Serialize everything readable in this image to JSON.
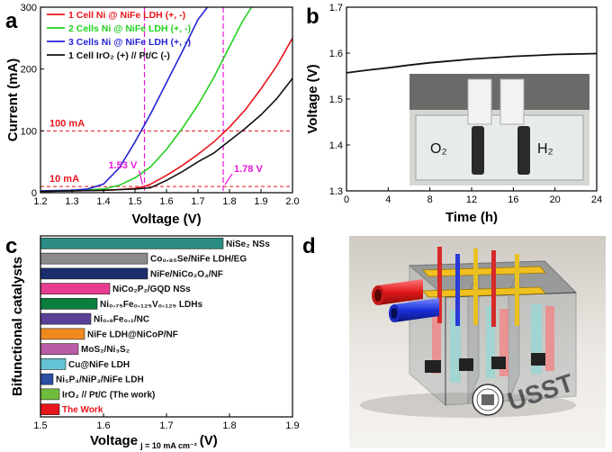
{
  "panels": {
    "a": {
      "letter": "a"
    },
    "b": {
      "letter": "b"
    },
    "c": {
      "letter": "c"
    },
    "d": {
      "letter": "d",
      "watermark": "USST",
      "tube_colors": [
        "#e02020",
        "#1a2fd8"
      ]
    }
  },
  "chart_data": [
    {
      "panel": "a",
      "type": "line",
      "xlabel": "Voltage (V)",
      "ylabel": "Current (mA)",
      "xlim": [
        1.2,
        2.0
      ],
      "ylim": [
        0,
        300
      ],
      "xticks": [
        "1.2",
        "1.3",
        "1.4",
        "1.5",
        "1.6",
        "1.7",
        "1.8",
        "1.9",
        "2.0"
      ],
      "yticks": [
        "0",
        "100",
        "200",
        "300"
      ],
      "grid": false,
      "legend_position": "top-left",
      "series": [
        {
          "name": "1 Cell   Ni @ NiFe LDH (+, -)",
          "color": "#e8141b",
          "x": [
            1.2,
            1.3,
            1.4,
            1.45,
            1.5,
            1.53,
            1.55,
            1.6,
            1.65,
            1.7,
            1.75,
            1.8,
            1.85,
            1.9,
            1.95,
            2.0
          ],
          "y": [
            2,
            3,
            4,
            5,
            7,
            10,
            14,
            28,
            44,
            62,
            82,
            106,
            134,
            168,
            205,
            250
          ]
        },
        {
          "name": "2 Cells Ni @ NiFe LDH (+, -)",
          "color": "#22d01f",
          "x": [
            1.2,
            1.3,
            1.4,
            1.45,
            1.5,
            1.55,
            1.6,
            1.65,
            1.7,
            1.75,
            1.8,
            1.84,
            1.87
          ],
          "y": [
            2,
            3,
            6,
            12,
            24,
            42,
            70,
            104,
            142,
            186,
            236,
            276,
            300
          ]
        },
        {
          "name": "3 Cells Ni @ NiFe LDH (+, -)",
          "color": "#2424d6",
          "x": [
            1.2,
            1.3,
            1.35,
            1.4,
            1.45,
            1.5,
            1.55,
            1.6,
            1.65,
            1.7,
            1.73
          ],
          "y": [
            3,
            4,
            6,
            14,
            40,
            82,
            128,
            178,
            228,
            280,
            300
          ]
        },
        {
          "name": "1 Cell   IrO₂ (+) // Pt/C (-)",
          "color": "#111111",
          "x": [
            1.2,
            1.3,
            1.4,
            1.45,
            1.5,
            1.55,
            1.6,
            1.65,
            1.7,
            1.75,
            1.78,
            1.85,
            1.9,
            1.95,
            2.0
          ],
          "y": [
            2,
            3,
            4,
            5,
            6,
            8,
            20,
            34,
            50,
            64,
            76,
            104,
            126,
            152,
            185
          ]
        }
      ],
      "reference_lines": [
        {
          "axis": "y",
          "value": 100,
          "label": "100 mA",
          "color": "#e8141b"
        },
        {
          "axis": "y",
          "value": 10,
          "label": "10 mA",
          "color": "#e8141b"
        },
        {
          "axis": "x",
          "value": 1.53,
          "color": "#e815d8"
        },
        {
          "axis": "x",
          "value": 1.78,
          "color": "#e815d8"
        }
      ],
      "annotations": [
        {
          "text": "1.53 V",
          "x": 1.53,
          "y": 10,
          "color": "#e815d8"
        },
        {
          "text": "1.78 V",
          "x": 1.78,
          "y": 10,
          "color": "#e815d8"
        }
      ]
    },
    {
      "panel": "b",
      "type": "line",
      "xlabel": "Time (h)",
      "ylabel": "Voltage (V)",
      "xlim": [
        0,
        24
      ],
      "ylim": [
        1.3,
        1.7
      ],
      "xticks": [
        "0",
        "4",
        "8",
        "12",
        "16",
        "20",
        "24"
      ],
      "yticks": [
        "1.3",
        "1.4",
        "1.5",
        "1.6",
        "1.7"
      ],
      "grid": false,
      "series": [
        {
          "color": "#111111",
          "x": [
            0,
            2,
            4,
            6,
            8,
            10,
            12,
            14,
            16,
            18,
            20,
            22,
            24
          ],
          "y": [
            1.557,
            1.563,
            1.568,
            1.574,
            1.579,
            1.583,
            1.587,
            1.59,
            1.593,
            1.595,
            1.597,
            1.598,
            1.599
          ]
        }
      ],
      "inset_photo_labels": [
        "O₂",
        "H₂"
      ]
    },
    {
      "panel": "c",
      "type": "bar",
      "orientation": "horizontal",
      "xlabel": "Voltage",
      "xlabel_subscript": "j = 10 mA cm⁻²",
      "xlabel_unit": "(V)",
      "ylabel": "Bifunctional catalysts",
      "xlim": [
        1.5,
        1.9
      ],
      "xticks": [
        "1.5",
        "1.6",
        "1.7",
        "1.8",
        "1.9"
      ],
      "grid": false,
      "categories": [
        "NiSe₂ NSs",
        "Co₀.₈₅Se/NiFe LDH/EG",
        "NiFe/NiCo₂O₄/NF",
        "NiCo₂P₂/GQD NSs",
        "Ni₀.₇₅Fe₀.₁₂₅V₀.₁₂₅ LDHs",
        "Ni₀.₉Fe₀.₁/NC",
        "NiFe LDH@NiCoP/NF",
        "MoS₂/Ni₃S₂",
        "Cu@NiFe LDH",
        "Ni₅P₄/NiP₂/NiFe LDH",
        "IrO₂ // Pt/C (The work)",
        "The Work"
      ],
      "values": [
        1.79,
        1.67,
        1.67,
        1.61,
        1.59,
        1.58,
        1.57,
        1.56,
        1.54,
        1.52,
        1.53,
        1.53
      ],
      "colors": [
        "#2a8c83",
        "#8a8a8a",
        "#1b2f6e",
        "#e73c8f",
        "#0b7e3d",
        "#5a3f98",
        "#f08a1e",
        "#b95ea6",
        "#63c3d4",
        "#2a4fa3",
        "#6ebc3a",
        "#e8141b"
      ],
      "label_colors": [
        "#111111",
        "#111111",
        "#111111",
        "#111111",
        "#111111",
        "#111111",
        "#111111",
        "#111111",
        "#111111",
        "#111111",
        "#111111",
        "#e8141b"
      ]
    }
  ]
}
